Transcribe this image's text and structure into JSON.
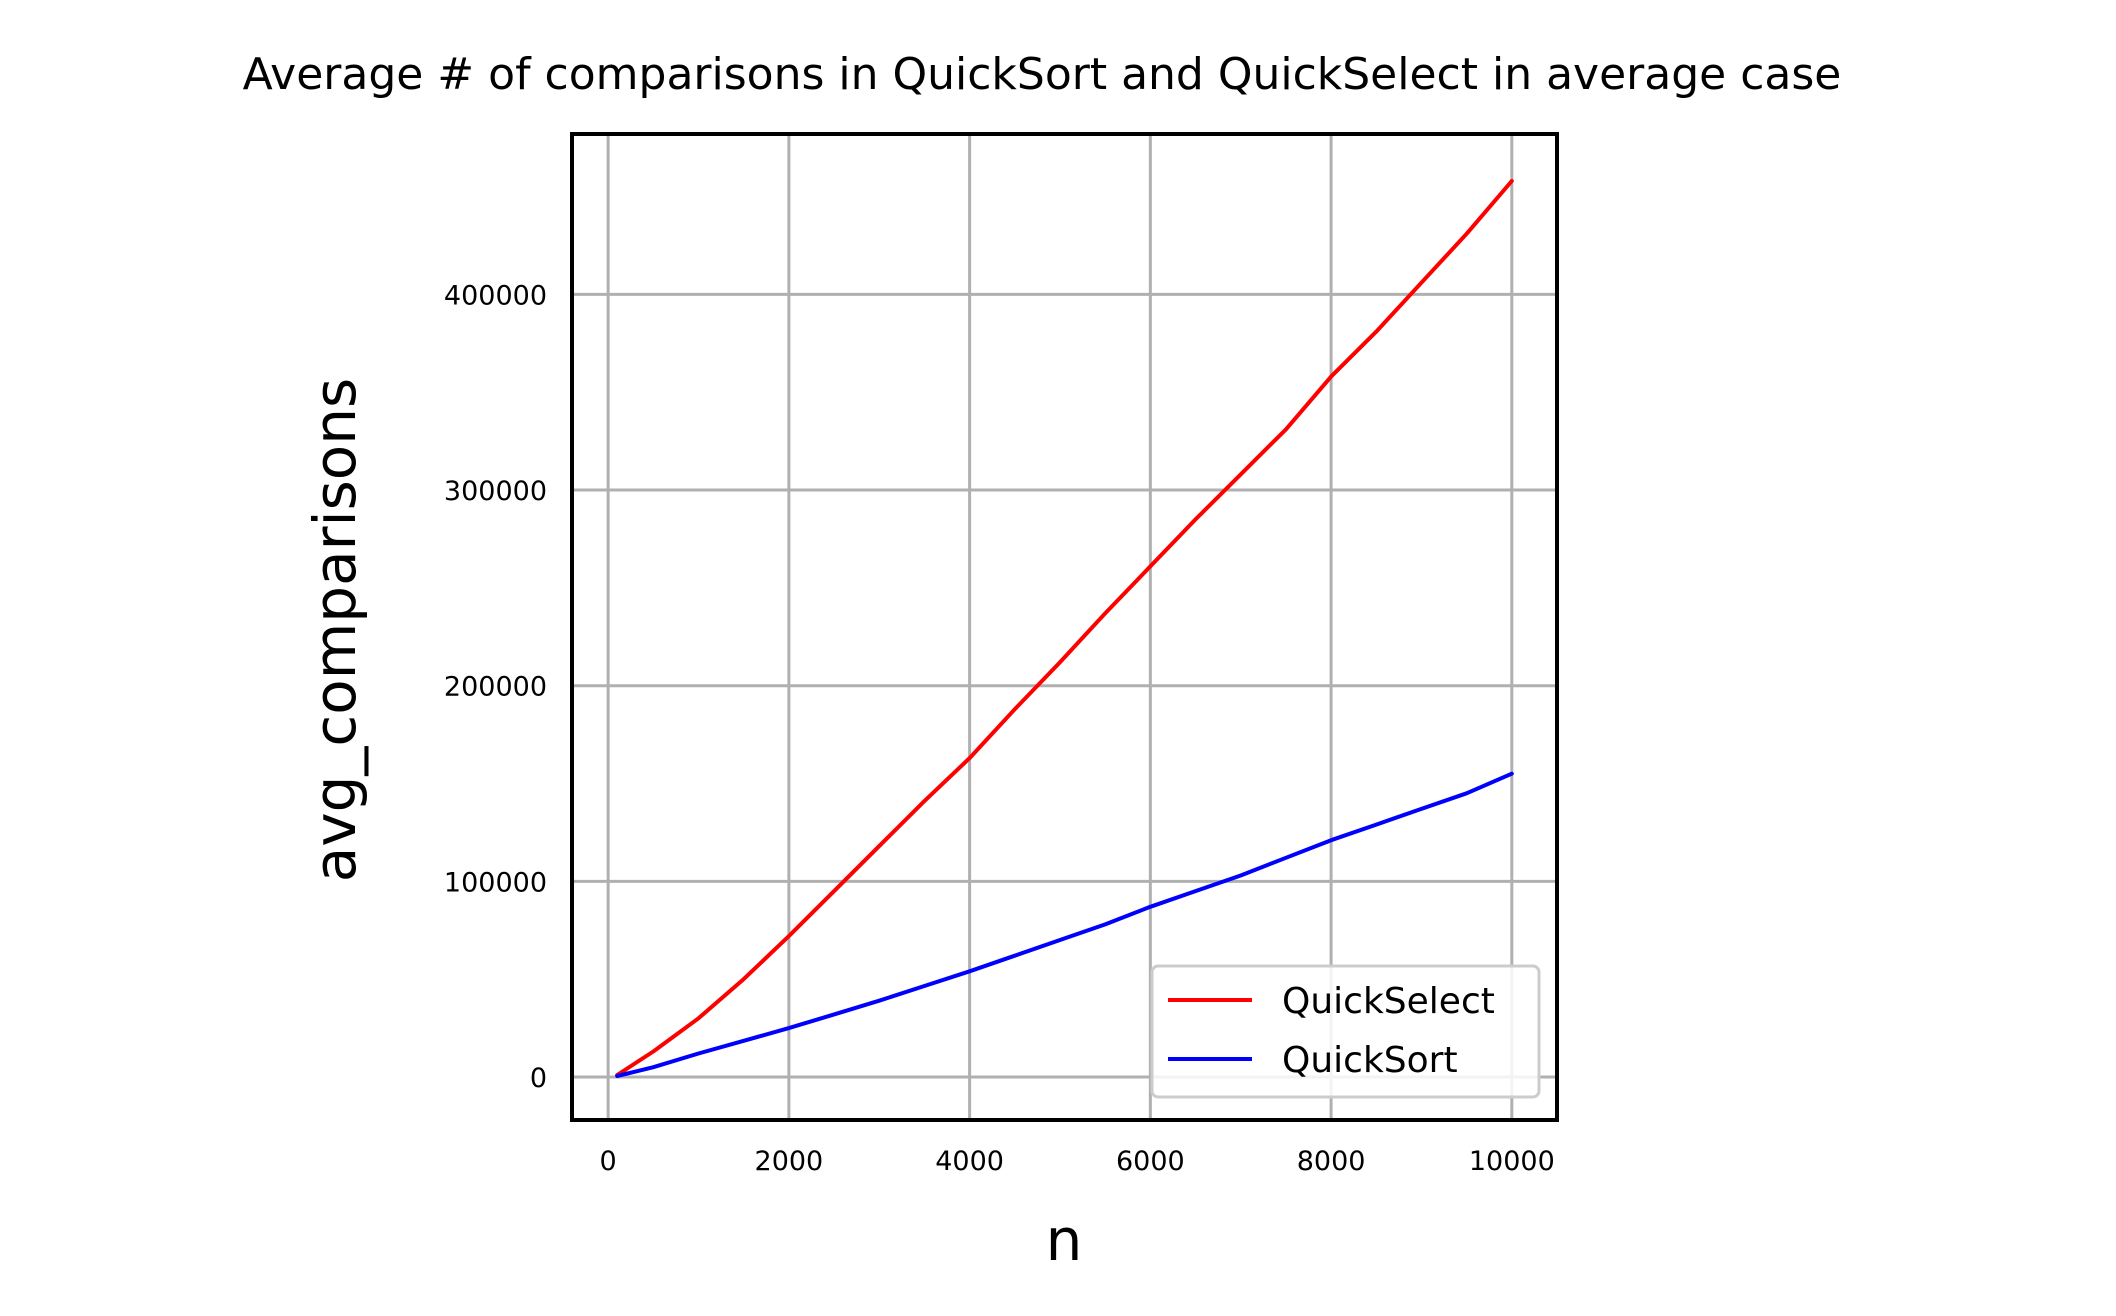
{
  "chart_data": {
    "type": "line",
    "title": "Average # of comparisons in QuickSort and QuickSelect in average case",
    "xlabel": "n",
    "ylabel": "avg_comparisons",
    "xlim": [
      -400,
      10500
    ],
    "ylim": [
      -22000,
      482000
    ],
    "xticks": [
      0,
      2000,
      4000,
      6000,
      8000,
      10000
    ],
    "yticks": [
      0,
      100000,
      200000,
      300000,
      400000
    ],
    "grid": true,
    "legend_position": "lower right",
    "series": [
      {
        "name": "QuickSelect",
        "color": "#ff0000",
        "x": [
          100,
          500,
          1000,
          1500,
          2000,
          2500,
          3000,
          3500,
          4000,
          4500,
          5000,
          5500,
          6000,
          6500,
          7000,
          7500,
          8000,
          8500,
          9000,
          9500,
          10000
        ],
        "y": [
          1000,
          13000,
          30000,
          50000,
          72000,
          95000,
          118000,
          141000,
          163000,
          188000,
          212000,
          237000,
          261000,
          285000,
          308000,
          331000,
          358000,
          381000,
          406000,
          431000,
          458000
        ]
      },
      {
        "name": "QuickSort",
        "color": "#0000ff",
        "x": [
          100,
          500,
          1000,
          1500,
          2000,
          2500,
          3000,
          3500,
          4000,
          4500,
          5000,
          5500,
          6000,
          6500,
          7000,
          7500,
          8000,
          8500,
          9000,
          9500,
          10000
        ],
        "y": [
          500,
          5000,
          12000,
          18500,
          25000,
          32000,
          39000,
          46500,
          54000,
          62000,
          70000,
          78000,
          87000,
          95000,
          103000,
          112000,
          121000,
          129000,
          137000,
          145000,
          155000
        ]
      }
    ]
  }
}
